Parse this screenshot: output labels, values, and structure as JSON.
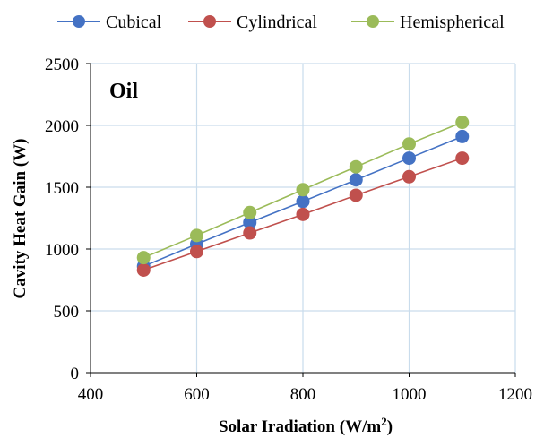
{
  "chart_data": {
    "type": "line",
    "annotation": "Oil",
    "xlabel_main": "Solar Iradiation (W/m",
    "xlabel_sup": "2",
    "xlabel_end": ")",
    "ylabel": "Cavity Heat Gain (W)",
    "xlim": [
      400,
      1200
    ],
    "ylim": [
      0,
      2500
    ],
    "x_ticks": [
      "400",
      "600",
      "800",
      "1000",
      "1200"
    ],
    "y_ticks": [
      "0",
      "500",
      "1000",
      "1500",
      "2000",
      "2500"
    ],
    "x_tick_values": [
      400,
      600,
      800,
      1000,
      1200
    ],
    "y_tick_values": [
      0,
      500,
      1000,
      1500,
      2000,
      2500
    ],
    "grid": true,
    "legend_position": "top",
    "x": [
      500,
      600,
      700,
      800,
      900,
      1000,
      1100
    ],
    "series": [
      {
        "name": "Cubical",
        "color": "#4472C4",
        "marker_color": "#4472C4",
        "values": [
          860,
          1040,
          1215,
          1385,
          1560,
          1735,
          1910
        ]
      },
      {
        "name": "Cylindrical",
        "color": "#C0504D",
        "marker_color": "#C0504D",
        "values": [
          830,
          980,
          1130,
          1280,
          1435,
          1585,
          1735
        ]
      },
      {
        "name": "Hemispherical",
        "color": "#9BBB59",
        "marker_color": "#9BBB59",
        "values": [
          930,
          1110,
          1295,
          1480,
          1665,
          1850,
          2025
        ]
      }
    ]
  }
}
